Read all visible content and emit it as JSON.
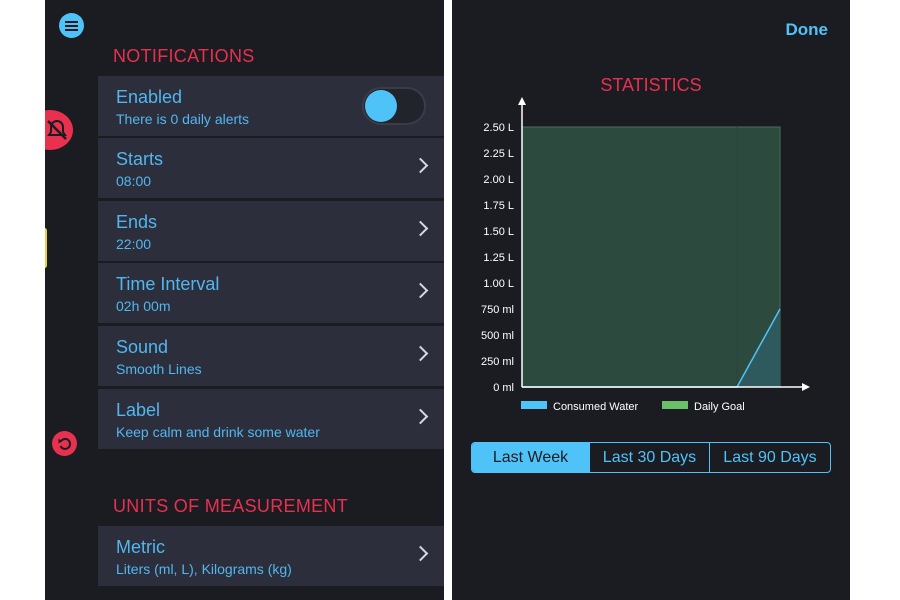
{
  "notifications": {
    "header": "NOTIFICATIONS",
    "rows": [
      {
        "title": "Enabled",
        "subtitle": "There is 0 daily alerts",
        "control": "toggle",
        "toggle_on": true
      },
      {
        "title": "Starts",
        "subtitle": "08:00",
        "control": "chevron"
      },
      {
        "title": "Ends",
        "subtitle": "22:00",
        "control": "chevron"
      },
      {
        "title": "Time Interval",
        "subtitle": "02h 00m",
        "control": "chevron"
      },
      {
        "title": "Sound",
        "subtitle": "Smooth Lines",
        "control": "chevron"
      },
      {
        "title": "Label",
        "subtitle": "Keep calm and drink some water",
        "control": "chevron"
      }
    ]
  },
  "units": {
    "header": "UNITS OF MEASUREMENT",
    "rows": [
      {
        "title": "Metric",
        "subtitle": "Liters (ml, L), Kilograms (kg)",
        "control": "chevron"
      }
    ]
  },
  "side_icons": [
    "menu-icon",
    "no-alert-icon",
    "reset-icon"
  ],
  "stats": {
    "done_label": "Done",
    "title": "STATISTICS",
    "range_tabs": [
      {
        "label": "Last Week",
        "active": true
      },
      {
        "label": "Last 30 Days",
        "active": false
      },
      {
        "label": "Last 90 Days",
        "active": false
      }
    ]
  },
  "chart_data": {
    "type": "area",
    "title": "STATISTICS",
    "x": [
      1,
      2,
      3,
      4,
      5,
      6,
      7
    ],
    "ylim": [
      0,
      2.5
    ],
    "y_ticks": [
      0,
      0.25,
      0.5,
      0.75,
      1.0,
      1.25,
      1.5,
      1.75,
      2.0,
      2.25,
      2.5
    ],
    "y_tick_labels": [
      "0 ml",
      "250 ml",
      "500 ml",
      "750 ml",
      "1.00 L",
      "1.25 L",
      "1.50 L",
      "1.75 L",
      "2.00 L",
      "2.25 L",
      "2.50 L"
    ],
    "series": [
      {
        "name": "Consumed Water",
        "values": [
          0,
          0,
          0,
          0,
          0,
          0,
          0.75
        ],
        "color": "#4fc3f7"
      },
      {
        "name": "Daily Goal",
        "values": [
          2.5,
          2.5,
          2.5,
          2.5,
          2.5,
          2.5,
          2.5
        ],
        "color": "#6abf69"
      }
    ],
    "legend": "bottom",
    "grid": false
  },
  "colors": {
    "background": "#1b1c22",
    "row": "#2c2f3b",
    "accent": "#4fc3f7",
    "header": "#e8304f",
    "goal_fill": "#2d4a3e",
    "goal_line": "#4a6f58"
  }
}
